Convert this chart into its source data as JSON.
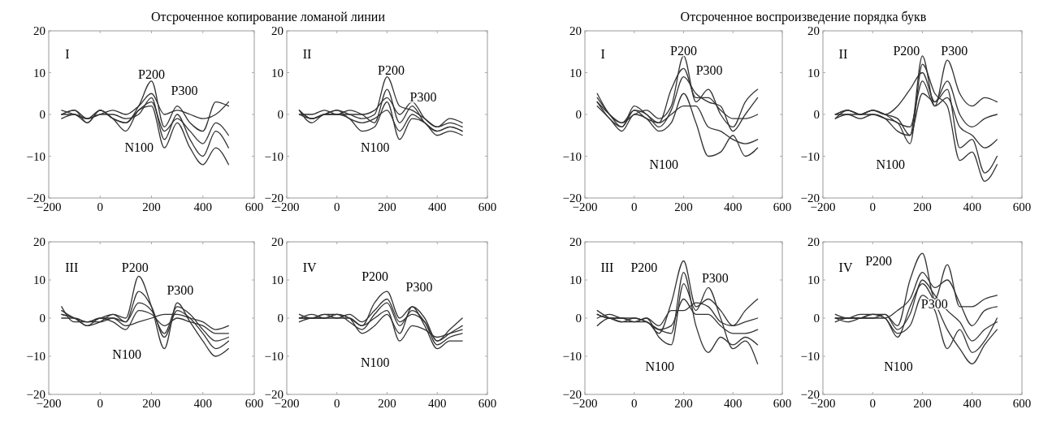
{
  "chart_data": [
    {
      "type": "line",
      "title": "Отсроченное копирование ломаной линии",
      "x": [
        -150,
        -100,
        -50,
        0,
        50,
        100,
        150,
        200,
        250,
        300,
        350,
        400,
        450,
        500
      ],
      "xlim": [
        -200,
        600
      ],
      "ylim": [
        -20,
        20
      ],
      "xticks": [
        -200,
        0,
        200,
        400,
        600
      ],
      "yticks": [
        -20,
        -10,
        0,
        10,
        20
      ],
      "annotations": [
        "I",
        "P200",
        "P300",
        "N100"
      ],
      "series": [
        {
          "color": "#333333",
          "values": [
            0,
            1,
            -2,
            1,
            -1,
            -2,
            2,
            8,
            -3,
            2,
            -2,
            -4,
            3,
            2
          ]
        },
        {
          "color": "#333333",
          "values": [
            1,
            0,
            -1,
            0,
            0,
            -1,
            0,
            4,
            -6,
            0,
            -6,
            -10,
            -4,
            -8
          ]
        },
        {
          "color": "#333333",
          "values": [
            -1,
            0,
            -2,
            1,
            -1,
            -4,
            1,
            2,
            -8,
            -2,
            -8,
            -12,
            -8,
            -12
          ]
        },
        {
          "color": "#333333",
          "values": [
            0,
            1,
            -1,
            0,
            1,
            0,
            2,
            5,
            0,
            1,
            0,
            -1,
            0,
            3
          ]
        },
        {
          "color": "#333333",
          "values": [
            0,
            0,
            -1,
            1,
            -1,
            -2,
            1,
            3,
            -4,
            -1,
            -4,
            -7,
            -2,
            -5
          ]
        }
      ]
    },
    {
      "type": "line",
      "x": [
        -150,
        -100,
        -50,
        0,
        50,
        100,
        150,
        200,
        250,
        300,
        350,
        400,
        450,
        500
      ],
      "xlim": [
        -200,
        600
      ],
      "ylim": [
        -20,
        20
      ],
      "xticks": [
        -200,
        0,
        200,
        400,
        600
      ],
      "yticks": [
        -20,
        -10,
        0,
        10,
        20
      ],
      "annotations": [
        "II",
        "P200",
        "P300",
        "N100"
      ],
      "series": [
        {
          "color": "#333333",
          "values": [
            1,
            -1,
            0,
            1,
            0,
            -1,
            0,
            9,
            2,
            1,
            -1,
            -3,
            -2,
            -3
          ]
        },
        {
          "color": "#333333",
          "values": [
            0,
            -1,
            0,
            0,
            1,
            0,
            -2,
            6,
            -2,
            2,
            -2,
            -4,
            -3,
            -4
          ]
        },
        {
          "color": "#333333",
          "values": [
            1,
            -2,
            0,
            0,
            -1,
            -4,
            -3,
            3,
            -6,
            -1,
            -2,
            -5,
            -4,
            -5
          ]
        },
        {
          "color": "#333333",
          "values": [
            0,
            0,
            1,
            0,
            0,
            0,
            1,
            4,
            0,
            3,
            -1,
            -3,
            -1,
            -2
          ]
        },
        {
          "color": "#333333",
          "values": [
            1,
            -1,
            0,
            1,
            -1,
            -2,
            -1,
            1,
            -4,
            0,
            -2,
            -4,
            -3,
            -4
          ]
        }
      ]
    },
    {
      "type": "line",
      "title": "Отсроченное воспроизведение порядка букв",
      "x": [
        -150,
        -100,
        -50,
        0,
        50,
        100,
        150,
        200,
        250,
        300,
        350,
        400,
        450,
        500
      ],
      "xlim": [
        -200,
        600
      ],
      "ylim": [
        -20,
        20
      ],
      "xticks": [
        -200,
        0,
        200,
        400,
        600
      ],
      "yticks": [
        -20,
        -10,
        0,
        10,
        20
      ],
      "annotations": [
        "I",
        "P200",
        "P300",
        "N100"
      ],
      "series": [
        {
          "color": "#333333",
          "values": [
            5,
            0,
            -2,
            0,
            1,
            -1,
            2,
            14,
            3,
            6,
            0,
            -3,
            3,
            6
          ]
        },
        {
          "color": "#333333",
          "values": [
            3,
            -1,
            -3,
            1,
            0,
            -3,
            1,
            9,
            5,
            3,
            2,
            -4,
            0,
            4
          ]
        },
        {
          "color": "#333333",
          "values": [
            2,
            -1,
            -4,
            0,
            -1,
            -4,
            -2,
            5,
            -2,
            -10,
            -9,
            -5,
            -10,
            -8
          ]
        },
        {
          "color": "#333333",
          "values": [
            3,
            0,
            -2,
            1,
            -1,
            -2,
            0,
            2,
            2,
            -3,
            -4,
            -6,
            -7,
            -6
          ]
        },
        {
          "color": "#333333",
          "values": [
            4,
            0,
            -3,
            2,
            0,
            -2,
            6,
            11,
            4,
            4,
            1,
            -1,
            -1,
            0
          ]
        }
      ]
    },
    {
      "type": "line",
      "x": [
        -150,
        -100,
        -50,
        0,
        50,
        100,
        150,
        200,
        250,
        300,
        350,
        400,
        450,
        500
      ],
      "xlim": [
        -200,
        600
      ],
      "ylim": [
        -20,
        20
      ],
      "xticks": [
        -200,
        0,
        200,
        400,
        600
      ],
      "yticks": [
        -20,
        -10,
        0,
        10,
        20
      ],
      "annotations": [
        "II",
        "P200",
        "P300",
        "N100"
      ],
      "series": [
        {
          "color": "#333333",
          "values": [
            0,
            1,
            0,
            1,
            0,
            -1,
            -5,
            14,
            2,
            13,
            5,
            2,
            4,
            3
          ]
        },
        {
          "color": "#333333",
          "values": [
            -1,
            1,
            0,
            1,
            0,
            2,
            6,
            10,
            3,
            8,
            0,
            -3,
            -1,
            0
          ]
        },
        {
          "color": "#333333",
          "values": [
            0,
            0,
            -1,
            0,
            -1,
            -2,
            -7,
            12,
            5,
            2,
            -11,
            -9,
            -16,
            -12
          ]
        },
        {
          "color": "#333333",
          "values": [
            0,
            1,
            0,
            0,
            -1,
            -4,
            -5,
            5,
            3,
            6,
            -8,
            -6,
            -14,
            -10
          ]
        },
        {
          "color": "#333333",
          "values": [
            -1,
            0,
            0,
            1,
            0,
            -2,
            -3,
            8,
            2,
            4,
            -3,
            -5,
            -8,
            -6
          ]
        }
      ]
    },
    {
      "type": "line",
      "x": [
        -150,
        -100,
        -50,
        0,
        50,
        100,
        150,
        200,
        250,
        300,
        350,
        400,
        450,
        500
      ],
      "xlim": [
        -200,
        600
      ],
      "ylim": [
        -20,
        20
      ],
      "xticks": [
        -200,
        0,
        200,
        400,
        600
      ],
      "yticks": [
        -20,
        -10,
        0,
        10,
        20
      ],
      "annotations": [
        "III",
        "P200",
        "P300",
        "N100"
      ],
      "series": [
        {
          "color": "#333333",
          "values": [
            2,
            0,
            -1,
            0,
            1,
            0,
            11,
            3,
            -8,
            4,
            -1,
            -6,
            -10,
            -8
          ]
        },
        {
          "color": "#333333",
          "values": [
            1,
            0,
            -2,
            -1,
            1,
            -1,
            7,
            3,
            -5,
            2,
            0,
            -4,
            -8,
            -6
          ]
        },
        {
          "color": "#333333",
          "values": [
            3,
            -1,
            -1,
            0,
            -1,
            -3,
            2,
            1,
            -2,
            0,
            -1,
            -2,
            -4,
            -4
          ]
        },
        {
          "color": "#333333",
          "values": [
            1,
            0,
            -2,
            0,
            0,
            -1,
            4,
            2,
            -4,
            3,
            1,
            -3,
            -6,
            -5
          ]
        },
        {
          "color": "#333333",
          "values": [
            0,
            0,
            -1,
            -1,
            0,
            -2,
            -1,
            0,
            1,
            1,
            0,
            -1,
            -3,
            -2
          ]
        }
      ]
    },
    {
      "type": "line",
      "x": [
        -150,
        -100,
        -50,
        0,
        50,
        100,
        150,
        200,
        250,
        300,
        350,
        400,
        450,
        500
      ],
      "xlim": [
        -200,
        600
      ],
      "ylim": [
        -20,
        20
      ],
      "xticks": [
        -200,
        0,
        200,
        400,
        600
      ],
      "yticks": [
        -20,
        -10,
        0,
        10,
        20
      ],
      "annotations": [
        "IV",
        "P200",
        "P300",
        "N100"
      ],
      "series": [
        {
          "color": "#333333",
          "values": [
            0,
            0,
            1,
            1,
            0,
            -2,
            4,
            7,
            0,
            3,
            0,
            -6,
            -3,
            0
          ]
        },
        {
          "color": "#333333",
          "values": [
            -1,
            0,
            0,
            1,
            -1,
            -3,
            1,
            4,
            -2,
            2,
            -1,
            -7,
            -5,
            -4
          ]
        },
        {
          "color": "#333333",
          "values": [
            0,
            1,
            0,
            1,
            0,
            -4,
            -2,
            1,
            -4,
            3,
            -2,
            -8,
            -6,
            -6
          ]
        },
        {
          "color": "#333333",
          "values": [
            0,
            0,
            1,
            0,
            0,
            -2,
            0,
            2,
            -6,
            -2,
            -3,
            -5,
            -4,
            -3
          ]
        },
        {
          "color": "#333333",
          "values": [
            1,
            0,
            0,
            0,
            1,
            -1,
            2,
            5,
            -1,
            1,
            -1,
            -6,
            -4,
            -2
          ]
        }
      ]
    },
    {
      "type": "line",
      "x": [
        -150,
        -100,
        -50,
        0,
        50,
        100,
        150,
        200,
        250,
        300,
        350,
        400,
        450,
        500
      ],
      "xlim": [
        -200,
        600
      ],
      "ylim": [
        -20,
        20
      ],
      "xticks": [
        -200,
        0,
        200,
        400,
        600
      ],
      "yticks": [
        -20,
        -10,
        0,
        10,
        20
      ],
      "annotations": [
        "III",
        "P200",
        "P300",
        "N100"
      ],
      "series": [
        {
          "color": "#333333",
          "values": [
            1,
            0,
            0,
            -1,
            -1,
            -4,
            4,
            15,
            3,
            5,
            2,
            -2,
            2,
            5
          ]
        },
        {
          "color": "#333333",
          "values": [
            2,
            0,
            -1,
            -1,
            0,
            -5,
            -7,
            9,
            2,
            8,
            0,
            -8,
            -6,
            -12
          ]
        },
        {
          "color": "#333333",
          "values": [
            0,
            1,
            0,
            0,
            -1,
            -3,
            -4,
            12,
            -2,
            -9,
            -5,
            -7,
            -5,
            -7
          ]
        },
        {
          "color": "#333333",
          "values": [
            1,
            0,
            0,
            -1,
            0,
            -2,
            2,
            2,
            4,
            3,
            -1,
            -2,
            -1,
            0
          ]
        },
        {
          "color": "#333333",
          "values": [
            -2,
            0,
            -1,
            0,
            -1,
            -3,
            -2,
            5,
            1,
            1,
            -2,
            -4,
            -4,
            -3
          ]
        }
      ]
    },
    {
      "type": "line",
      "x": [
        -150,
        -100,
        -50,
        0,
        50,
        100,
        150,
        200,
        250,
        300,
        350,
        400,
        450,
        500
      ],
      "xlim": [
        -200,
        600
      ],
      "ylim": [
        -20,
        20
      ],
      "xticks": [
        -200,
        0,
        200,
        400,
        600
      ],
      "yticks": [
        -20,
        -10,
        0,
        10,
        20
      ],
      "annotations": [
        "IV",
        "P200",
        "P300",
        "N100"
      ],
      "series": [
        {
          "color": "#333333",
          "values": [
            0,
            0,
            1,
            1,
            1,
            -2,
            10,
            17,
            5,
            14,
            3,
            3,
            5,
            6
          ]
        },
        {
          "color": "#333333",
          "values": [
            1,
            0,
            0,
            0,
            0,
            2,
            5,
            12,
            8,
            10,
            4,
            -2,
            2,
            3
          ]
        },
        {
          "color": "#333333",
          "values": [
            0,
            -1,
            0,
            1,
            0,
            -5,
            3,
            9,
            4,
            -3,
            -8,
            -12,
            -7,
            -3
          ]
        },
        {
          "color": "#333333",
          "values": [
            0,
            0,
            0,
            1,
            0,
            -4,
            -2,
            6,
            2,
            -8,
            -3,
            -9,
            -6,
            0
          ]
        },
        {
          "color": "#333333",
          "values": [
            -1,
            0,
            0,
            0,
            1,
            -3,
            1,
            10,
            6,
            2,
            -1,
            -6,
            -3,
            -1
          ]
        }
      ]
    }
  ]
}
